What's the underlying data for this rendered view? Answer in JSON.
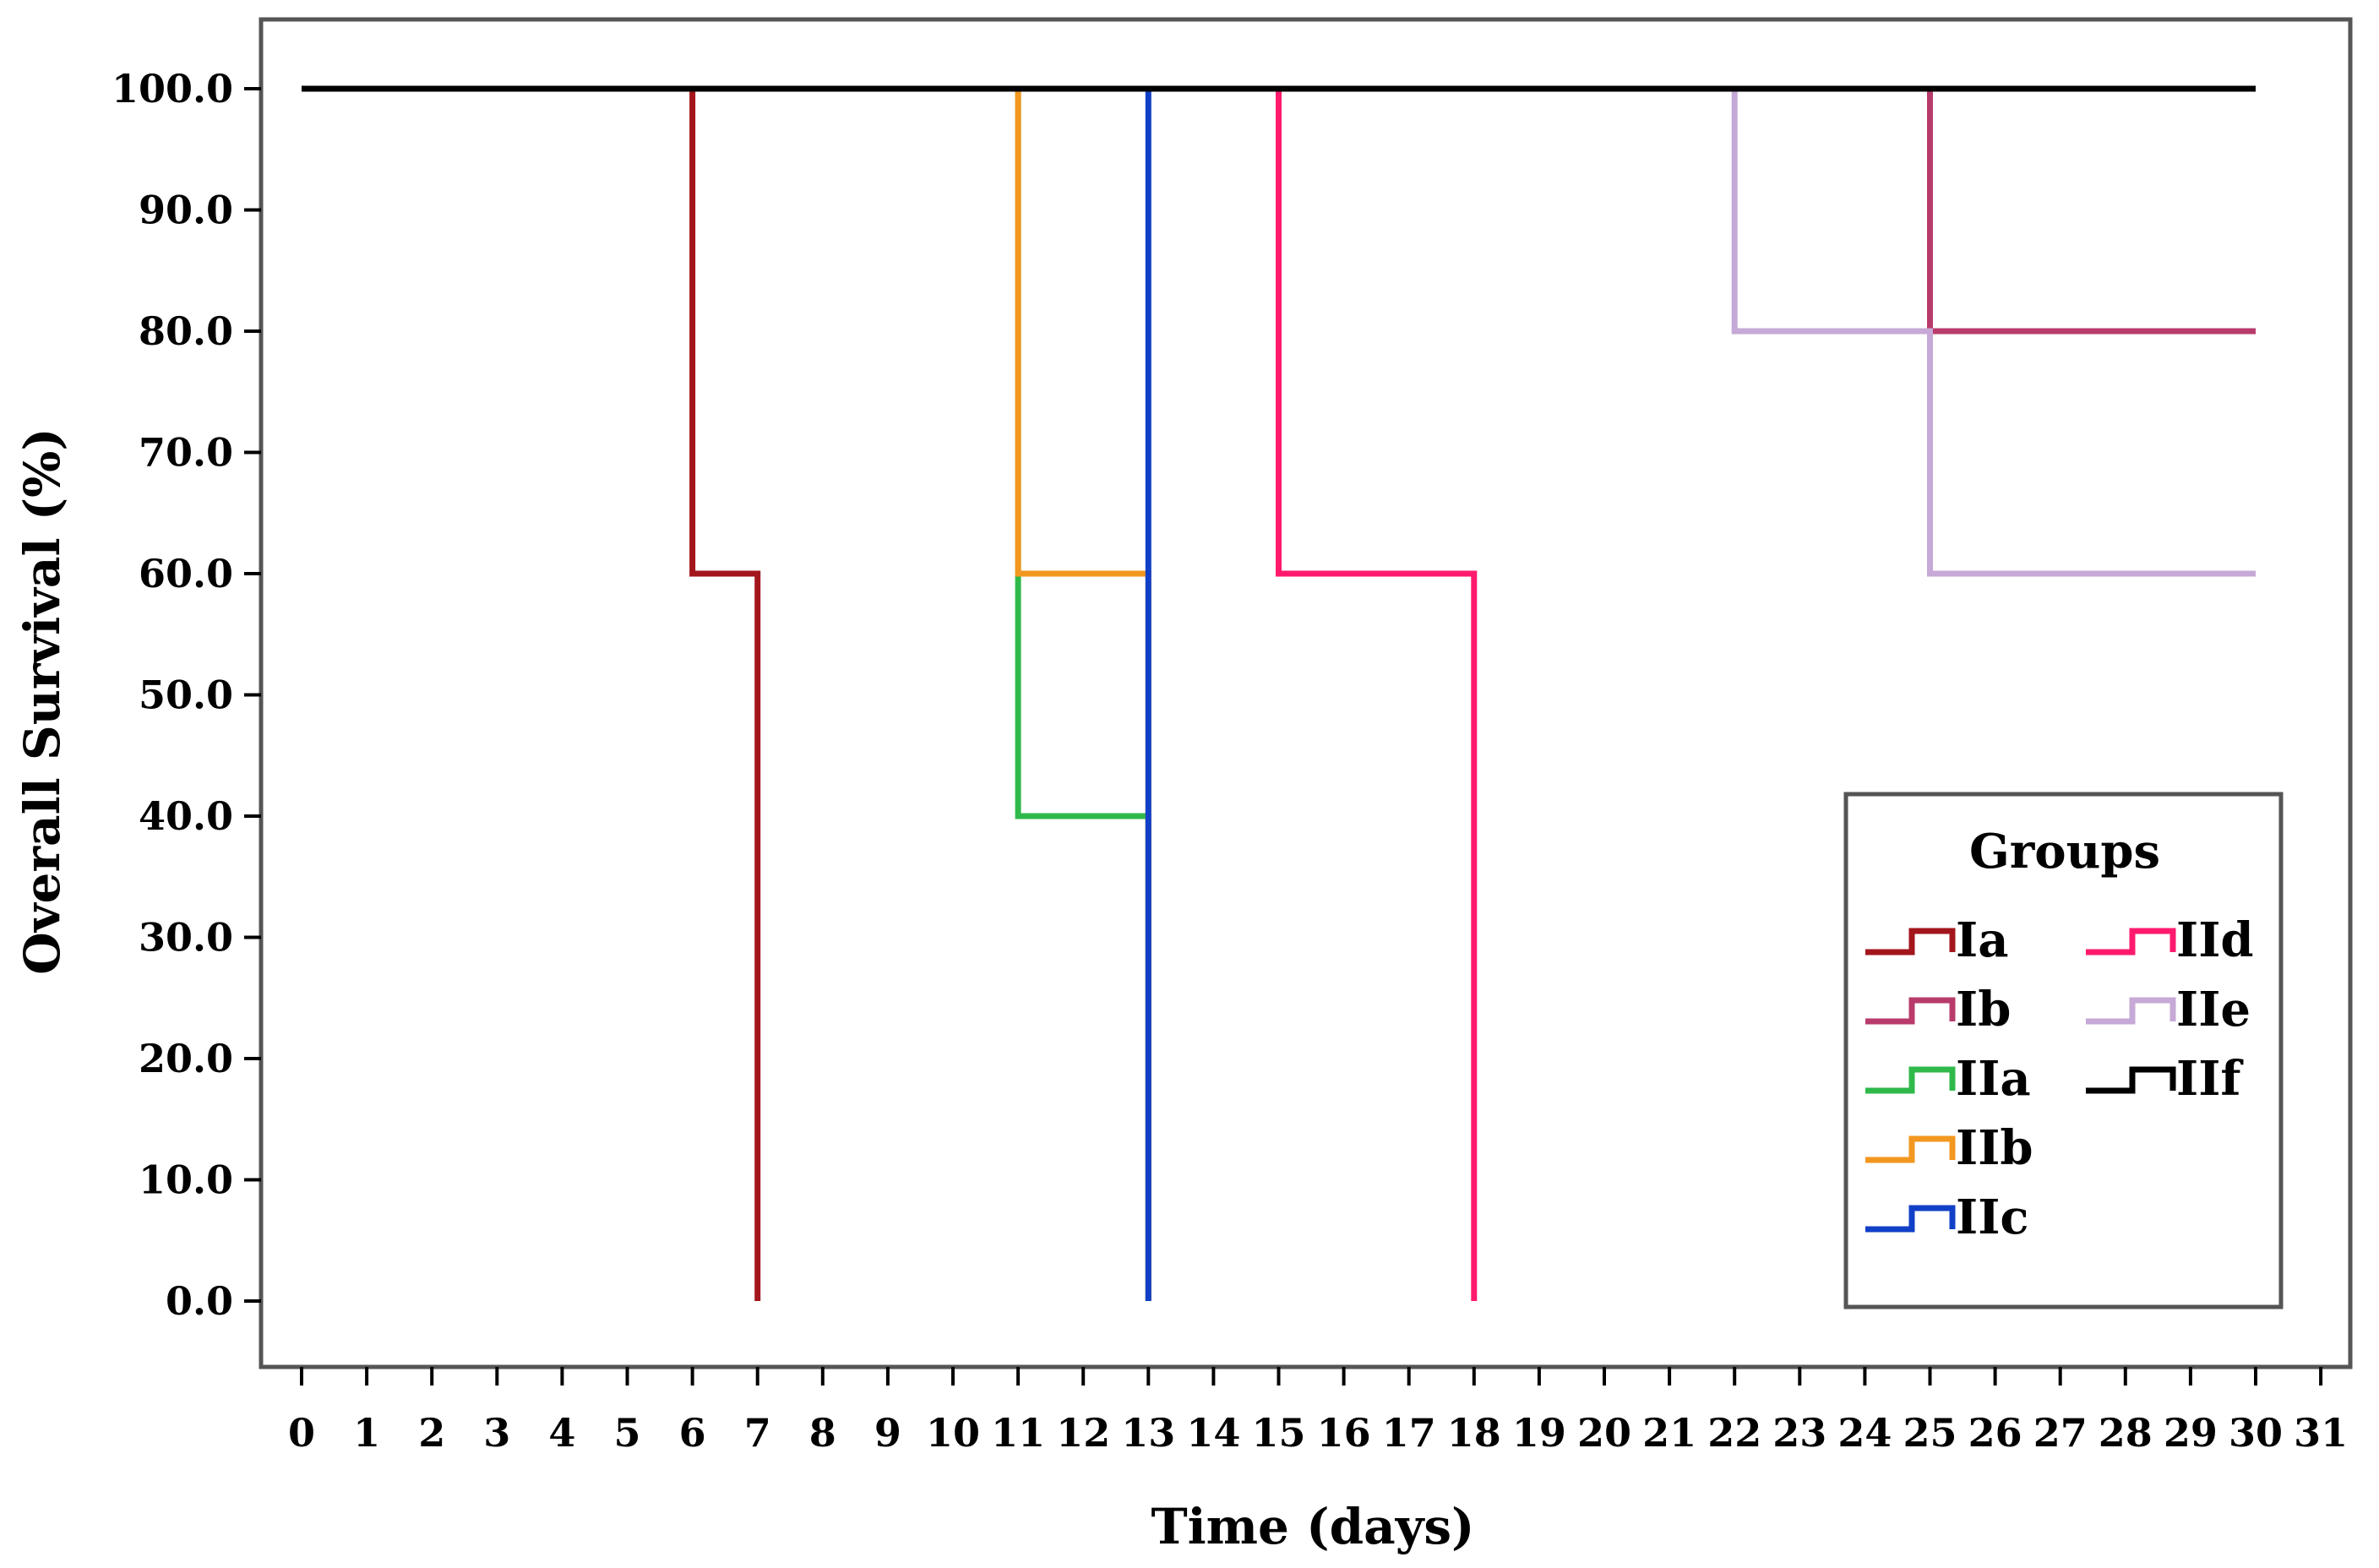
{
  "chart_data": {
    "type": "line",
    "step": true,
    "title": "",
    "xlabel": "Time (days)",
    "ylabel": "Overall Survival (%)",
    "xlim": [
      0,
      31
    ],
    "ylim": [
      0,
      100
    ],
    "x_ticks": [
      0,
      1,
      2,
      3,
      4,
      5,
      6,
      7,
      8,
      9,
      10,
      11,
      12,
      13,
      14,
      15,
      16,
      17,
      18,
      19,
      20,
      21,
      22,
      23,
      24,
      25,
      26,
      27,
      28,
      29,
      30,
      31
    ],
    "x_tick_labels": [
      "0",
      "1",
      "2",
      "3",
      "4",
      "5",
      "6",
      "7",
      "8",
      "9",
      "10",
      "11",
      "12",
      "13",
      "14",
      "15",
      "16",
      "17",
      "18",
      "19",
      "20",
      "21",
      "22",
      "23",
      "24",
      "25",
      "26",
      "27",
      "28",
      "29",
      "30",
      "31"
    ],
    "y_ticks": [
      0,
      10,
      20,
      30,
      40,
      50,
      60,
      70,
      80,
      90,
      100
    ],
    "y_tick_labels": [
      "0.0",
      "10.0",
      "20.0",
      "30.0",
      "40.0",
      "50.0",
      "60.0",
      "70.0",
      "80.0",
      "90.0",
      "100.0"
    ],
    "grid": false,
    "legend": {
      "title": "Groups",
      "placement": "bottom-right",
      "columns": 2
    },
    "series": [
      {
        "name": "Ia",
        "color": "#a3161c",
        "x": [
          0,
          6,
          7
        ],
        "y": [
          100,
          60,
          0
        ]
      },
      {
        "name": "Ib",
        "color": "#b83b6c",
        "x": [
          0,
          25,
          30
        ],
        "y": [
          100,
          80,
          80
        ]
      },
      {
        "name": "IIa",
        "color": "#2fb94a",
        "x": [
          0,
          11,
          13
        ],
        "y": [
          100,
          40,
          0
        ]
      },
      {
        "name": "IIb",
        "color": "#f2971f",
        "x": [
          0,
          11,
          13
        ],
        "y": [
          100,
          60,
          0
        ]
      },
      {
        "name": "IIc",
        "color": "#1140c8",
        "x": [
          0,
          13
        ],
        "y": [
          100,
          0
        ]
      },
      {
        "name": "IId",
        "color": "#ff1a6e",
        "x": [
          0,
          15,
          18
        ],
        "y": [
          100,
          60,
          0
        ]
      },
      {
        "name": "IIe",
        "color": "#c6a9d6",
        "x": [
          0,
          22,
          25,
          30
        ],
        "y": [
          100,
          80,
          60,
          60
        ]
      },
      {
        "name": "IIf",
        "color": "#000000",
        "x": [
          0,
          30
        ],
        "y": [
          100,
          100
        ]
      }
    ]
  }
}
